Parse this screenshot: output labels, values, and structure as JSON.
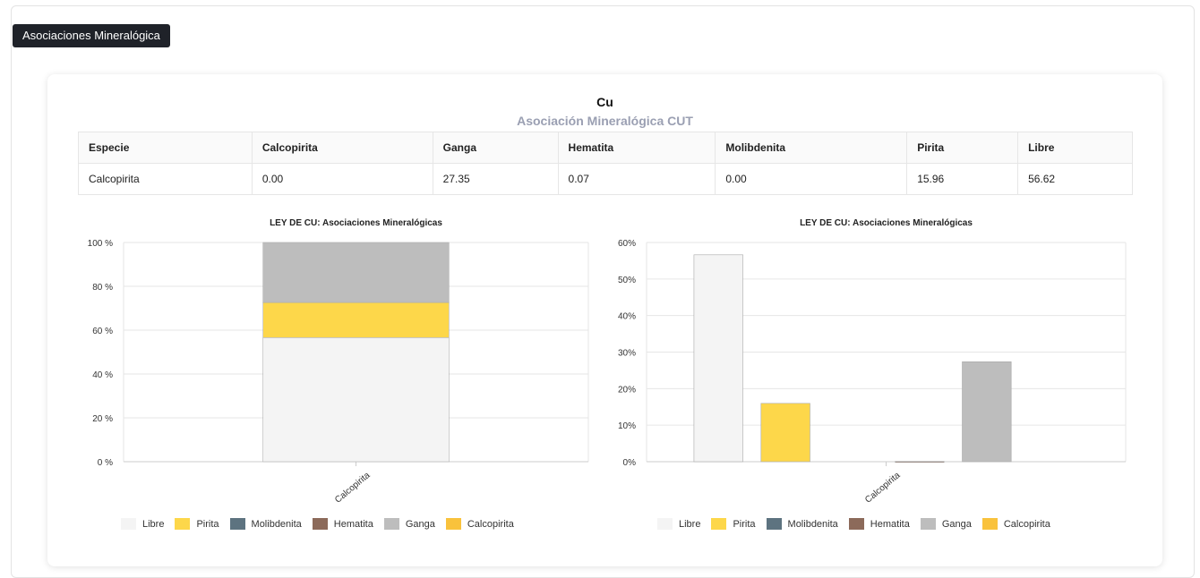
{
  "section_label": "Asociaciones Mineralógica",
  "card": {
    "title": "Cu",
    "subtitle": "Asociación Mineralógica CUT"
  },
  "table": {
    "headers": [
      "Especie",
      "Calcopirita",
      "Ganga",
      "Hematita",
      "Molibdenita",
      "Pirita",
      "Libre"
    ],
    "rows": [
      [
        "Calcopirita",
        "0.00",
        "27.35",
        "0.07",
        "0.00",
        "15.96",
        "56.62"
      ]
    ]
  },
  "colors": {
    "Libre": "#f4f4f4",
    "Pirita": "#fdd74a",
    "Molibdenita": "#5d7380",
    "Hematita": "#8c6a5a",
    "Ganga": "#bdbdbd",
    "Calcopirita": "#f9c23c"
  },
  "chart_data": [
    {
      "type": "bar",
      "stacked": true,
      "title": "LEY DE CU: Asociaciones Mineralógicas",
      "categories": [
        "Calcopirita"
      ],
      "y_ticks": [
        "0 %",
        "20 %",
        "40 %",
        "60 %",
        "80 %",
        "100 %"
      ],
      "ylim": [
        0,
        100
      ],
      "series": [
        {
          "name": "Libre",
          "values": [
            56.62
          ]
        },
        {
          "name": "Pirita",
          "values": [
            15.96
          ]
        },
        {
          "name": "Molibdenita",
          "values": [
            0.0
          ]
        },
        {
          "name": "Hematita",
          "values": [
            0.07
          ]
        },
        {
          "name": "Ganga",
          "values": [
            27.35
          ]
        },
        {
          "name": "Calcopirita",
          "values": [
            0.0
          ]
        }
      ],
      "legend": [
        "Libre",
        "Pirita",
        "Molibdenita",
        "Hematita",
        "Ganga",
        "Calcopirita"
      ],
      "legend_position": "bottom"
    },
    {
      "type": "bar",
      "stacked": false,
      "title": "LEY DE CU: Asociaciones Mineralógicas",
      "categories": [
        "Calcopirita"
      ],
      "y_ticks": [
        "0%",
        "10%",
        "20%",
        "30%",
        "40%",
        "50%",
        "60%"
      ],
      "ylim": [
        0,
        60
      ],
      "series": [
        {
          "name": "Libre",
          "values": [
            56.62
          ]
        },
        {
          "name": "Pirita",
          "values": [
            15.96
          ]
        },
        {
          "name": "Molibdenita",
          "values": [
            0.0
          ]
        },
        {
          "name": "Hematita",
          "values": [
            0.07
          ]
        },
        {
          "name": "Ganga",
          "values": [
            27.35
          ]
        },
        {
          "name": "Calcopirita",
          "values": [
            0.0
          ]
        }
      ],
      "legend": [
        "Libre",
        "Pirita",
        "Molibdenita",
        "Hematita",
        "Ganga",
        "Calcopirita"
      ],
      "legend_position": "bottom"
    }
  ]
}
